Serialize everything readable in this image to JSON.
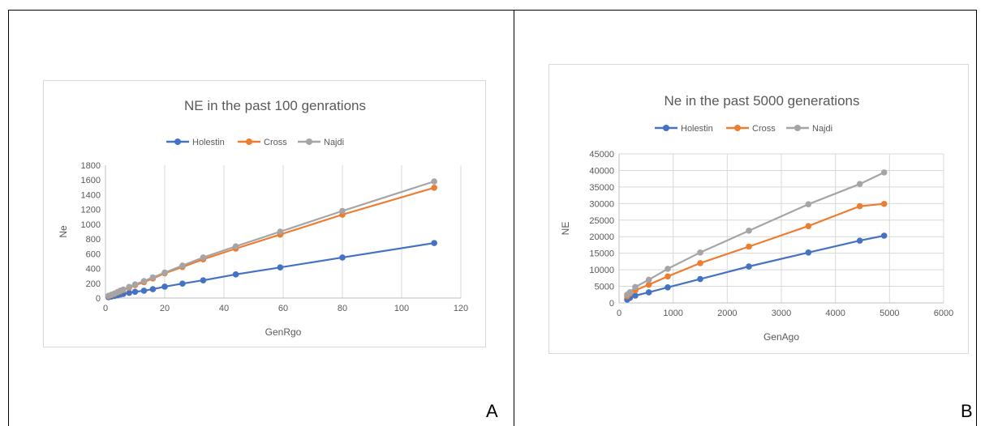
{
  "panels": [
    {
      "label": "A"
    },
    {
      "label": "B"
    }
  ],
  "chart_data": [
    {
      "type": "line",
      "title": "NE in the past 100 genrations",
      "xlabel": "GenRgo",
      "ylabel": "Ne",
      "xlim": [
        0,
        120
      ],
      "ylim": [
        0,
        1800
      ],
      "xticks": [
        0,
        20,
        40,
        60,
        80,
        100,
        120
      ],
      "yticks": [
        0,
        200,
        400,
        600,
        800,
        1000,
        1200,
        1400,
        1600,
        1800
      ],
      "grid": "vertical",
      "legend": "top",
      "series": [
        {
          "name": "Holestin",
          "color": "#4472C4",
          "points": [
            [
              1,
              12
            ],
            [
              2,
              20
            ],
            [
              3,
              28
            ],
            [
              4,
              38
            ],
            [
              5,
              48
            ],
            [
              6,
              56
            ],
            [
              8,
              70
            ],
            [
              10,
              85
            ],
            [
              13,
              100
            ],
            [
              16,
              120
            ],
            [
              20,
              155
            ],
            [
              26,
              195
            ],
            [
              33,
              240
            ],
            [
              44,
              320
            ],
            [
              59,
              415
            ],
            [
              80,
              550
            ],
            [
              111,
              745
            ]
          ]
        },
        {
          "name": "Cross",
          "color": "#ED7D31",
          "points": [
            [
              1,
              25
            ],
            [
              2,
              40
            ],
            [
              3,
              55
            ],
            [
              4,
              75
            ],
            [
              5,
              90
            ],
            [
              6,
              110
            ],
            [
              8,
              140
            ],
            [
              10,
              175
            ],
            [
              13,
              215
            ],
            [
              16,
              265
            ],
            [
              20,
              335
            ],
            [
              26,
              420
            ],
            [
              33,
              525
            ],
            [
              44,
              670
            ],
            [
              59,
              860
            ],
            [
              80,
              1130
            ],
            [
              111,
              1495
            ]
          ]
        },
        {
          "name": "Najdi",
          "color": "#A5A5A5",
          "points": [
            [
              1,
              30
            ],
            [
              2,
              45
            ],
            [
              3,
              60
            ],
            [
              4,
              80
            ],
            [
              5,
              100
            ],
            [
              6,
              115
            ],
            [
              8,
              150
            ],
            [
              10,
              185
            ],
            [
              13,
              230
            ],
            [
              16,
              280
            ],
            [
              20,
              345
            ],
            [
              26,
              440
            ],
            [
              33,
              550
            ],
            [
              44,
              700
            ],
            [
              59,
              900
            ],
            [
              80,
              1180
            ],
            [
              111,
              1580
            ]
          ]
        }
      ]
    },
    {
      "type": "line",
      "title": "Ne in the past 5000 generations",
      "xlabel": "GenAgo",
      "ylabel": "NE",
      "xlim": [
        0,
        6000
      ],
      "ylim": [
        0,
        45000
      ],
      "xticks": [
        0,
        1000,
        2000,
        3000,
        4000,
        5000,
        6000
      ],
      "yticks": [
        0,
        5000,
        10000,
        15000,
        20000,
        25000,
        30000,
        35000,
        40000,
        45000
      ],
      "grid": "both",
      "legend": "top",
      "series": [
        {
          "name": "Holestin",
          "color": "#4472C4",
          "points": [
            [
              150,
              1000
            ],
            [
              200,
              1500
            ],
            [
              300,
              2200
            ],
            [
              550,
              3200
            ],
            [
              900,
              4700
            ],
            [
              1500,
              7200
            ],
            [
              2400,
              11000
            ],
            [
              3500,
              15200
            ],
            [
              4450,
              18800
            ],
            [
              4900,
              20300
            ]
          ]
        },
        {
          "name": "Cross",
          "color": "#ED7D31",
          "points": [
            [
              150,
              2000
            ],
            [
              200,
              2800
            ],
            [
              300,
              3800
            ],
            [
              550,
              5500
            ],
            [
              900,
              8000
            ],
            [
              1500,
              12000
            ],
            [
              2400,
              17000
            ],
            [
              3500,
              23200
            ],
            [
              4450,
              29200
            ],
            [
              4900,
              29900
            ]
          ]
        },
        {
          "name": "Najdi",
          "color": "#A5A5A5",
          "points": [
            [
              150,
              2500
            ],
            [
              200,
              3200
            ],
            [
              300,
              4800
            ],
            [
              550,
              7000
            ],
            [
              900,
              10300
            ],
            [
              1500,
              15200
            ],
            [
              2400,
              21800
            ],
            [
              3500,
              29800
            ],
            [
              4450,
              35900
            ],
            [
              4900,
              39400
            ]
          ]
        }
      ]
    }
  ]
}
